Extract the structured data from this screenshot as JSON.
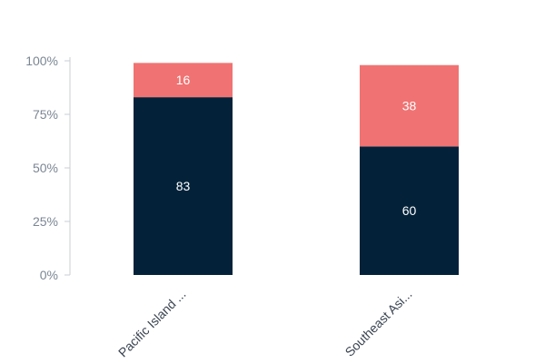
{
  "chart_data": {
    "type": "bar",
    "stacked": true,
    "normalized": true,
    "categories": [
      "Pacific Island ...",
      "Southeast Asi..."
    ],
    "series": [
      {
        "values": [
          83,
          60
        ],
        "color": "#03223a"
      },
      {
        "values": [
          16,
          38
        ],
        "color": "#f07272"
      }
    ],
    "y_ticks": [
      "0%",
      "25%",
      "50%",
      "75%",
      "100%"
    ],
    "ylim": [
      0,
      100
    ],
    "grid": false,
    "legend": "none",
    "colors": {
      "axis": "#c8cdd3",
      "tick_text": "#7b8694",
      "category_text": "#3a4451",
      "data_label_text": "#ffffff"
    }
  }
}
